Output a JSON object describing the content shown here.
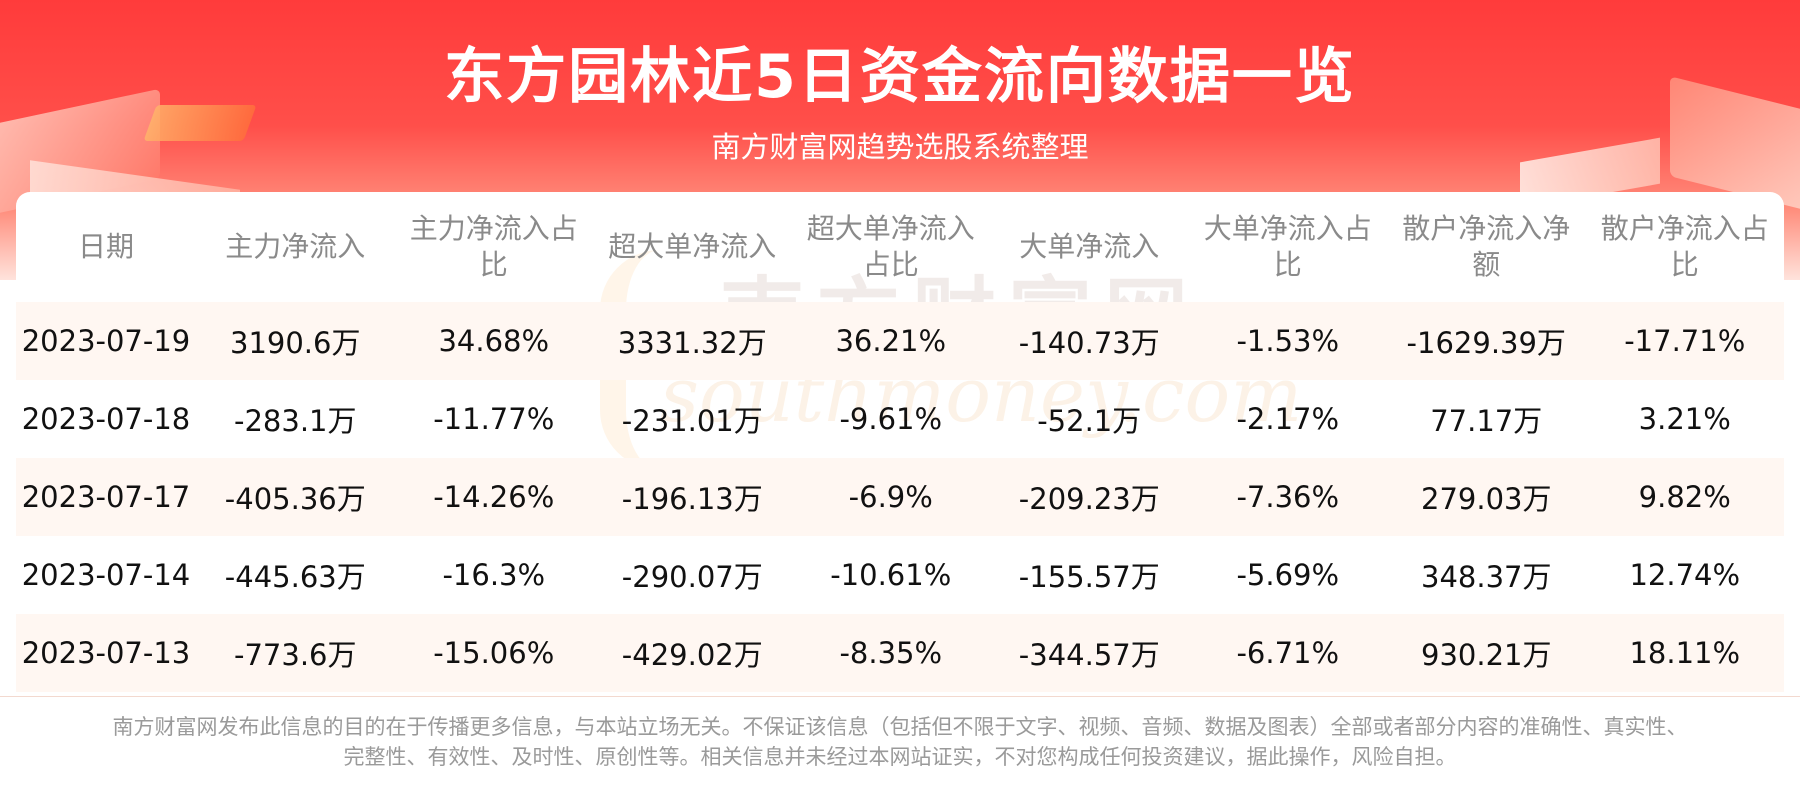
{
  "header": {
    "title": "东方园林近5日资金流向数据一览",
    "subtitle": "南方财富网趋势选股系统整理"
  },
  "watermark": {
    "cn": "南方财富网",
    "en": "southmoney.com"
  },
  "chart_data": {
    "type": "table",
    "columns": [
      "日期",
      "主力净流入",
      "主力净流入占比",
      "超大单净流入",
      "超大单净流入占比",
      "大单净流入",
      "大单净流入占比",
      "散户净流入净额",
      "散户净流入占比"
    ],
    "rows": [
      [
        "2023-07-19",
        "3190.6万",
        "34.68%",
        "3331.32万",
        "36.21%",
        "-140.73万",
        "-1.53%",
        "-1629.39万",
        "-17.71%"
      ],
      [
        "2023-07-18",
        "-283.1万",
        "-11.77%",
        "-231.01万",
        "-9.61%",
        "-52.1万",
        "-2.17%",
        "77.17万",
        "3.21%"
      ],
      [
        "2023-07-17",
        "-405.36万",
        "-14.26%",
        "-196.13万",
        "-6.9%",
        "-209.23万",
        "-7.36%",
        "279.03万",
        "9.82%"
      ],
      [
        "2023-07-14",
        "-445.63万",
        "-16.3%",
        "-290.07万",
        "-10.61%",
        "-155.57万",
        "-5.69%",
        "348.37万",
        "12.74%"
      ],
      [
        "2023-07-13",
        "-773.6万",
        "-15.06%",
        "-429.02万",
        "-8.35%",
        "-344.57万",
        "-6.71%",
        "930.21万",
        "18.11%"
      ]
    ]
  },
  "footer": {
    "disclaimer_line1": "南方财富网发布此信息的目的在于传播更多信息，与本站立场无关。不保证该信息（包括但不限于文字、视频、音频、数据及图表）全部或者部分内容的准确性、真实性、",
    "disclaimer_line2": "完整性、有效性、及时性、原创性等。相关信息并未经过本网站证实，不对您构成任何投资建议，据此操作，风险自担。"
  },
  "colors": {
    "header_red": "#ff3b3b",
    "row_stripe": "#fff7f2",
    "header_text": "#8a8a8a",
    "cell_text": "#111111"
  }
}
